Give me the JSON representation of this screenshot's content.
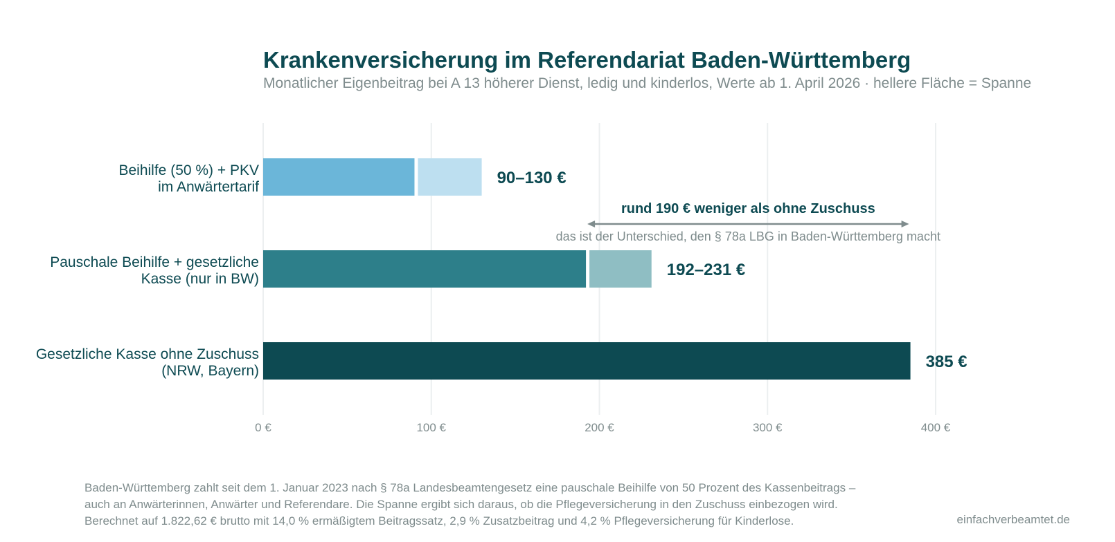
{
  "title": "Krankenversicherung im Referendariat Baden-Württemberg",
  "subtitle": "Monatlicher Eigenbeitrag bei A 13 höherer Dienst, ledig und kinderlos, Werte ab 1. April 2026 · hellere Fläche = Spanne",
  "chart_data": {
    "type": "bar",
    "orientation": "horizontal",
    "xlim": [
      0,
      400
    ],
    "x_ticks": [
      0,
      100,
      200,
      300,
      400
    ],
    "x_tick_labels": [
      "0 €",
      "100 €",
      "200 €",
      "300 €",
      "400 €"
    ],
    "grid": "vertical",
    "categories": [
      {
        "label_lines": [
          "Beihilfe (50 %) + PKV",
          "im Anwärtertarif"
        ],
        "low": 90,
        "high": 130,
        "value_label": "90–130 €",
        "color": "#6bb6d9",
        "range_color": "#bddff0"
      },
      {
        "label_lines": [
          "Pauschale Beihilfe + gesetzliche",
          "Kasse (nur in BW)"
        ],
        "low": 192,
        "high": 231,
        "value_label": "192–231 €",
        "color": "#2d7f8a",
        "range_color": "#8fbec3"
      },
      {
        "label_lines": [
          "Gesetzliche Kasse ohne Zuschuss",
          "(NRW, Bayern)"
        ],
        "low": 385,
        "high": 385,
        "value_label": "385 €",
        "color": "#0d4a52",
        "range_color": "#0d4a52"
      }
    ],
    "annotation": {
      "from": 192,
      "to": 385,
      "text": "rund 190 € weniger als ohne Zuschuss",
      "subtext": "das ist der Unterschied, den § 78a LBG in Baden-Württemberg macht",
      "color": "#7f8c8d"
    }
  },
  "footnote_lines": [
    "Baden-Württemberg zahlt seit dem 1. Januar 2023 nach § 78a Landesbeamtengesetz eine pauschale Beihilfe von 50 Prozent des Kassenbeitrags –",
    "auch an Anwärterinnen, Anwärter und Referendare. Die Spanne ergibt sich daraus, ob die Pflegeversicherung in den Zuschuss einbezogen wird.",
    "Berechnet auf 1.822,62 € brutto mit 14,0 % ermäßigtem Beitragssatz, 2,9 % Zusatzbeitrag und 4,2 % Pflegeversicherung für Kinderlose."
  ],
  "source": "einfachverbeamtet.de"
}
